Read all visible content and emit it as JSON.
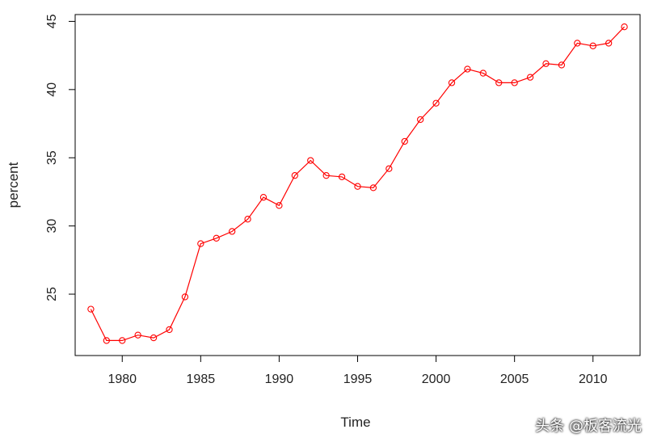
{
  "chart_data": {
    "type": "line",
    "title": "",
    "xlabel": "Time",
    "ylabel": "percent",
    "xlim": [
      1977,
      2013
    ],
    "ylim": [
      20.5,
      45.5
    ],
    "xticks": [
      1980,
      1985,
      1990,
      1995,
      2000,
      2005,
      2010
    ],
    "yticks": [
      25,
      30,
      35,
      40,
      45
    ],
    "grid": false,
    "color": "#ff0000",
    "marker": "open-circle",
    "series": [
      {
        "x": [
          1978,
          1979,
          1980,
          1981,
          1982,
          1983,
          1984,
          1985,
          1986,
          1987,
          1988,
          1989,
          1990,
          1991,
          1992,
          1993,
          1994,
          1995,
          1996,
          1997,
          1998,
          1999,
          2000,
          2001,
          2002,
          2003,
          2004,
          2005,
          2006,
          2007,
          2008,
          2009,
          2010,
          2011,
          2012
        ],
        "values": [
          23.9,
          21.6,
          21.6,
          22.0,
          21.8,
          22.4,
          24.8,
          28.7,
          29.1,
          29.6,
          30.5,
          32.1,
          31.5,
          33.7,
          34.8,
          33.7,
          33.6,
          32.9,
          32.8,
          34.2,
          36.2,
          37.8,
          39.0,
          40.5,
          41.5,
          41.2,
          40.5,
          40.5,
          40.9,
          41.9,
          41.8,
          43.4,
          43.2,
          43.4,
          44.6
        ]
      }
    ]
  },
  "watermark": "头条 @板客流光"
}
